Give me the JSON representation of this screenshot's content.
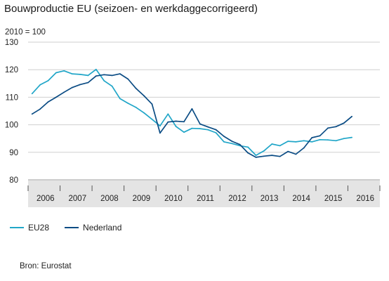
{
  "title": "Bouwproductie EU (seizoen- en werkdaggecorrigeerd)",
  "index_note": "2010 = 100",
  "source": "Bron: Eurostat",
  "legend": [
    {
      "name": "EU28",
      "color": "#21a6c8"
    },
    {
      "name": "Nederland",
      "color": "#0b4c84"
    }
  ],
  "colors": {
    "grid": "#cfcfcf",
    "axis_band": "#e4e4e4",
    "text": "#222222"
  },
  "chart_data": {
    "type": "line",
    "title": "Bouwproductie EU (seizoen- en werkdaggecorrigeerd)",
    "ylabel": "",
    "xlabel": "",
    "ylim": [
      80,
      130
    ],
    "yticks": [
      80,
      90,
      100,
      110,
      120,
      130
    ],
    "grid": "horizontal",
    "legend_position": "bottom-left",
    "x_tick_labels": [
      "2006",
      "2007",
      "2008",
      "2009",
      "2010",
      "2011",
      "2012",
      "2013",
      "2014",
      "2015",
      "2016"
    ],
    "x": [
      "2006 Q1",
      "2006 Q2",
      "2006 Q3",
      "2006 Q4",
      "2007 Q1",
      "2007 Q2",
      "2007 Q3",
      "2007 Q4",
      "2008 Q1",
      "2008 Q2",
      "2008 Q3",
      "2008 Q4",
      "2009 Q1",
      "2009 Q2",
      "2009 Q3",
      "2009 Q4",
      "2010 Q1",
      "2010 Q2",
      "2010 Q3",
      "2010 Q4",
      "2011 Q1",
      "2011 Q2",
      "2011 Q3",
      "2011 Q4",
      "2012 Q1",
      "2012 Q2",
      "2012 Q3",
      "2012 Q4",
      "2013 Q1",
      "2013 Q2",
      "2013 Q3",
      "2013 Q4",
      "2014 Q1",
      "2014 Q2",
      "2014 Q3",
      "2014 Q4",
      "2015 Q1",
      "2015 Q2",
      "2015 Q3",
      "2015 Q4",
      "2016 Q1"
    ],
    "series": [
      {
        "name": "EU28",
        "color": "#21a6c8",
        "values": [
          111.3,
          114.5,
          116.0,
          118.9,
          119.6,
          118.5,
          118.3,
          117.9,
          120.1,
          116.0,
          114.0,
          109.5,
          107.8,
          106.3,
          104.3,
          102.0,
          99.6,
          103.9,
          99.4,
          97.3,
          98.7,
          98.6,
          98.2,
          97.1,
          93.8,
          93.2,
          92.4,
          91.9,
          88.9,
          90.5,
          93.0,
          92.4,
          94.0,
          93.8,
          94.2,
          93.8,
          94.6,
          94.5,
          94.2,
          95.0,
          95.4
        ]
      },
      {
        "name": "Nederland",
        "color": "#0b4c84",
        "values": [
          103.9,
          105.7,
          108.3,
          110.0,
          111.8,
          113.5,
          114.6,
          115.3,
          117.7,
          118.2,
          117.9,
          118.5,
          116.6,
          113.2,
          110.5,
          107.5,
          97.0,
          101.0,
          101.3,
          101.1,
          105.8,
          100.3,
          99.2,
          98.2,
          95.8,
          94.0,
          92.8,
          89.8,
          88.2,
          88.6,
          88.9,
          88.5,
          90.3,
          89.3,
          91.6,
          95.3,
          96.0,
          98.8,
          99.3,
          100.6,
          103.0
        ]
      }
    ]
  }
}
